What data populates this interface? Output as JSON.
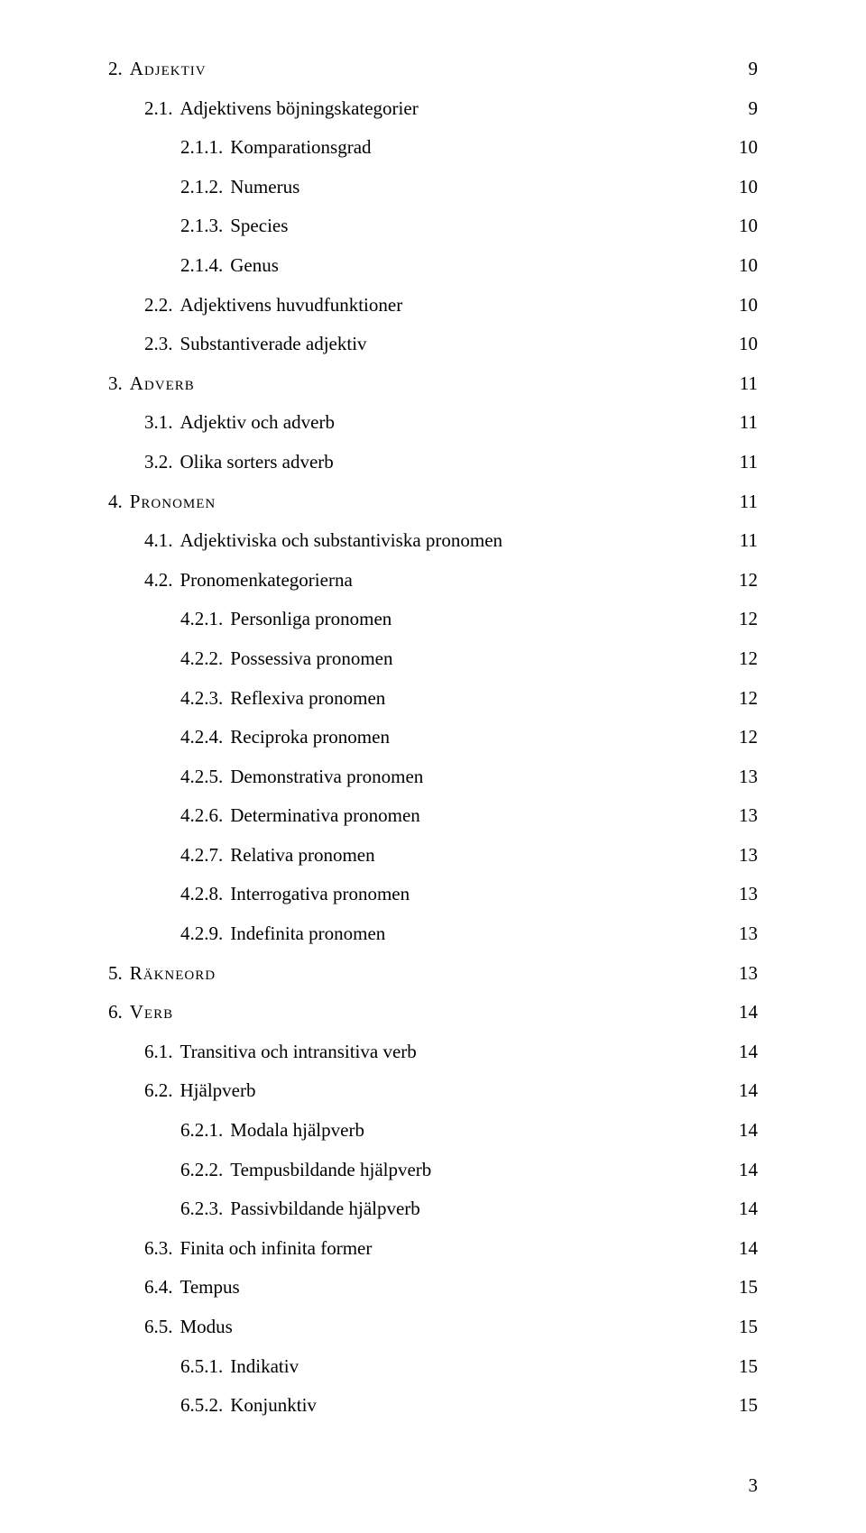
{
  "toc": [
    {
      "level": 1,
      "num": "2.",
      "label": "Adjektiv",
      "page": "9",
      "smallcaps": true
    },
    {
      "level": 2,
      "num": "2.1.",
      "label": "Adjektivens böjningskategorier",
      "page": "9"
    },
    {
      "level": 3,
      "num": "2.1.1.",
      "label": "Komparationsgrad",
      "page": "10"
    },
    {
      "level": 3,
      "num": "2.1.2.",
      "label": "Numerus",
      "page": "10"
    },
    {
      "level": 3,
      "num": "2.1.3.",
      "label": "Species",
      "page": "10"
    },
    {
      "level": 3,
      "num": "2.1.4.",
      "label": "Genus",
      "page": "10"
    },
    {
      "level": 2,
      "num": "2.2.",
      "label": "Adjektivens huvudfunktioner",
      "page": "10"
    },
    {
      "level": 2,
      "num": "2.3.",
      "label": "Substantiverade adjektiv",
      "page": "10"
    },
    {
      "level": 1,
      "num": "3.",
      "label": "Adverb",
      "page": "11",
      "smallcaps": true
    },
    {
      "level": 2,
      "num": "3.1.",
      "label": "Adjektiv och adverb",
      "page": "11"
    },
    {
      "level": 2,
      "num": "3.2.",
      "label": "Olika sorters adverb",
      "page": "11"
    },
    {
      "level": 1,
      "num": "4.",
      "label": "Pronomen",
      "page": "11",
      "smallcaps": true
    },
    {
      "level": 2,
      "num": "4.1.",
      "label": "Adjektiviska och substantiviska pronomen",
      "page": "11"
    },
    {
      "level": 2,
      "num": "4.2.",
      "label": "Pronomenkategorierna",
      "page": "12"
    },
    {
      "level": 3,
      "num": "4.2.1.",
      "label": "Personliga pronomen",
      "page": "12"
    },
    {
      "level": 3,
      "num": "4.2.2.",
      "label": "Possessiva pronomen",
      "page": "12"
    },
    {
      "level": 3,
      "num": "4.2.3.",
      "label": "Reflexiva pronomen",
      "page": "12"
    },
    {
      "level": 3,
      "num": "4.2.4.",
      "label": "Reciproka pronomen",
      "page": "12"
    },
    {
      "level": 3,
      "num": "4.2.5.",
      "label": "Demonstrativa pronomen",
      "page": "13"
    },
    {
      "level": 3,
      "num": "4.2.6.",
      "label": "Determinativa pronomen",
      "page": "13"
    },
    {
      "level": 3,
      "num": "4.2.7.",
      "label": "Relativa pronomen",
      "page": "13"
    },
    {
      "level": 3,
      "num": "4.2.8.",
      "label": "Interrogativa pronomen",
      "page": "13"
    },
    {
      "level": 3,
      "num": "4.2.9.",
      "label": "Indefinita pronomen",
      "page": "13"
    },
    {
      "level": 1,
      "num": "5.",
      "label": "Räkneord",
      "page": "13",
      "smallcaps": true
    },
    {
      "level": 1,
      "num": "6.",
      "label": "Verb",
      "page": "14",
      "smallcaps": true
    },
    {
      "level": 2,
      "num": "6.1.",
      "label": "Transitiva och intransitiva verb",
      "page": "14"
    },
    {
      "level": 2,
      "num": "6.2.",
      "label": "Hjälpverb",
      "page": "14"
    },
    {
      "level": 3,
      "num": "6.2.1.",
      "label": "Modala hjälpverb",
      "page": "14"
    },
    {
      "level": 3,
      "num": "6.2.2.",
      "label": "Tempusbildande hjälpverb",
      "page": "14"
    },
    {
      "level": 3,
      "num": "6.2.3.",
      "label": "Passivbildande hjälpverb",
      "page": "14"
    },
    {
      "level": 2,
      "num": "6.3.",
      "label": "Finita och infinita former",
      "page": "14"
    },
    {
      "level": 2,
      "num": "6.4.",
      "label": "Tempus",
      "page": "15"
    },
    {
      "level": 2,
      "num": "6.5.",
      "label": "Modus",
      "page": "15"
    },
    {
      "level": 3,
      "num": "6.5.1.",
      "label": "Indikativ",
      "page": "15"
    },
    {
      "level": 3,
      "num": "6.5.2.",
      "label": "Konjunktiv",
      "page": "15"
    }
  ],
  "page_number": "3"
}
